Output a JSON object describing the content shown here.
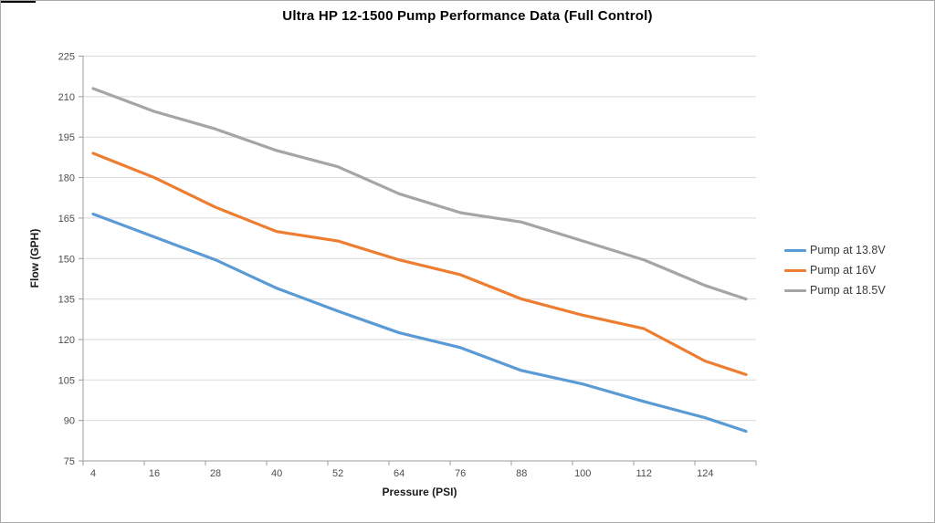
{
  "chart_data": {
    "type": "line",
    "title": "Ultra HP 12-1500 Pump Performance Data (Full Control)",
    "xlabel": "Pressure (PSI)",
    "ylabel": "Flow (GPH)",
    "x": [
      4,
      16,
      28,
      40,
      52,
      64,
      76,
      88,
      100,
      112,
      124,
      132
    ],
    "xtick_labels": [
      4,
      16,
      28,
      40,
      52,
      64,
      76,
      88,
      100,
      112,
      124
    ],
    "ylim": [
      75,
      225
    ],
    "ytick_step": 15,
    "grid": "horizontal",
    "legend_position": "right",
    "series": [
      {
        "name": "Pump at 13.8V",
        "color": "#5B9BD5",
        "values": [
          166.5,
          158,
          149.5,
          139,
          130.5,
          122.5,
          117,
          108.5,
          103.5,
          97,
          91,
          86
        ]
      },
      {
        "name": "Pump at 16V",
        "color": "#ED7D31",
        "values": [
          189,
          180,
          169,
          160,
          156.5,
          149.5,
          144,
          135,
          129,
          124,
          112,
          107
        ]
      },
      {
        "name": "Pump at 18.5V",
        "color": "#A5A5A5",
        "values": [
          213,
          204.5,
          198,
          190,
          184,
          174,
          167,
          163.5,
          156.5,
          149.5,
          140,
          135
        ]
      }
    ],
    "colors": {
      "gridline": "#D9D9D9",
      "axis": "#9B9B9B",
      "tick_text": "#4d4d4d"
    }
  }
}
